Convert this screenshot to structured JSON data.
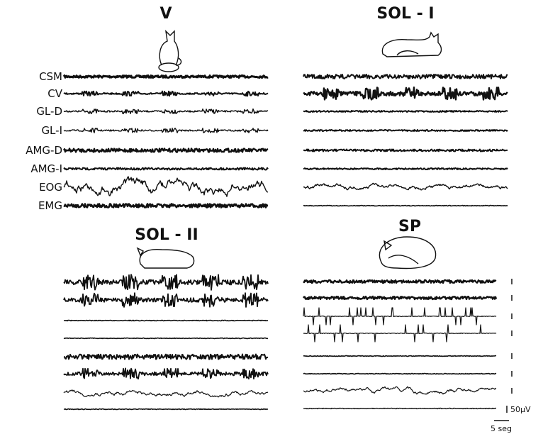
{
  "panels": [
    {
      "title": "V"
    },
    {
      "title": "SOL - I"
    },
    {
      "title": "SOL - II"
    },
    {
      "title": "SP"
    }
  ],
  "channels": [
    "CSM",
    "CV",
    "GL-D",
    "GL-I",
    "AMG-D",
    "AMG-I",
    "EOG",
    "EMG"
  ],
  "scale": {
    "voltage": "50µV",
    "time": "5 seg"
  }
}
